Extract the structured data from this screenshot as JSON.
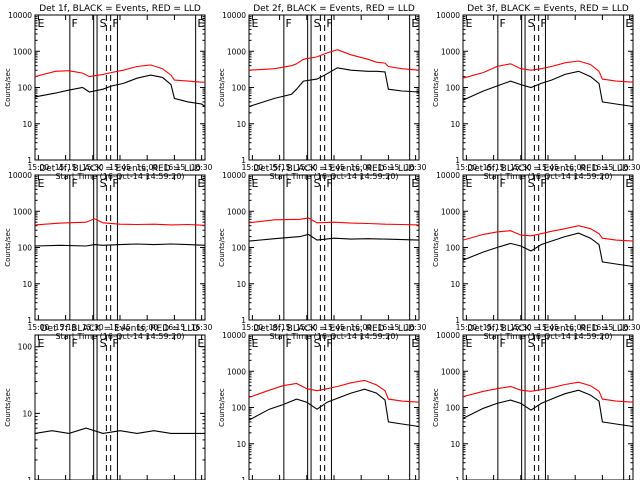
{
  "chart_data": [
    {
      "type": "line",
      "title": "Det 1f, BLACK = Events, RED = LLD",
      "xlabel": "Start Time (16-Oct-14 14:59:20)",
      "ylabel": "Counts/sec",
      "x_ticks": [
        "15:00",
        "15:15",
        "15:30",
        "15:45",
        "16:00",
        "16:15",
        "16:30"
      ],
      "y_ticks": [
        "1",
        "10",
        "100",
        "1000",
        "10000"
      ],
      "ylim": [
        1,
        10000
      ],
      "yscale": "log",
      "xrange_min": [
        0,
        100
      ],
      "series": [
        {
          "name": "Events",
          "color": "#000000",
          "x": [
            0,
            12,
            20,
            28,
            32,
            40,
            45,
            52,
            60,
            68,
            75,
            80,
            82,
            90,
            98,
            100
          ],
          "values": [
            55,
            70,
            85,
            100,
            75,
            90,
            110,
            130,
            180,
            220,
            190,
            120,
            50,
            40,
            35,
            30
          ]
        },
        {
          "name": "LLD",
          "color": "#ff0000",
          "x": [
            0,
            12,
            20,
            28,
            32,
            40,
            45,
            52,
            60,
            68,
            75,
            80,
            82,
            90,
            98,
            100
          ],
          "values": [
            200,
            280,
            290,
            250,
            200,
            230,
            260,
            300,
            380,
            420,
            330,
            220,
            160,
            150,
            140,
            140
          ]
        }
      ],
      "marker_labels": [
        "E",
        "F",
        "S",
        "F",
        "E"
      ]
    },
    {
      "type": "line",
      "title": "Det 2f, BLACK = Events, RED = LLD",
      "xlabel": "Start Time (16-Oct-14 14:59:20)",
      "ylabel": "Counts/sec",
      "x_ticks": [
        "15:00",
        "15:15",
        "15:30",
        "15:45",
        "16:00",
        "16:15",
        "16:30"
      ],
      "y_ticks": [
        "1",
        "10",
        "100",
        "1000",
        "10000"
      ],
      "ylim": [
        1,
        10000
      ],
      "yscale": "log",
      "xrange_min": [
        0,
        100
      ],
      "series": [
        {
          "name": "Events",
          "color": "#000000",
          "x": [
            0,
            15,
            25,
            28,
            32,
            40,
            46,
            52,
            60,
            70,
            75,
            80,
            82,
            90,
            100
          ],
          "values": [
            30,
            50,
            65,
            90,
            150,
            170,
            240,
            350,
            300,
            280,
            280,
            270,
            90,
            80,
            75
          ]
        },
        {
          "name": "LLD",
          "color": "#ff0000",
          "x": [
            0,
            15,
            25,
            28,
            32,
            40,
            46,
            52,
            60,
            70,
            75,
            80,
            82,
            90,
            100
          ],
          "values": [
            300,
            330,
            400,
            450,
            600,
            700,
            900,
            1100,
            800,
            600,
            500,
            470,
            380,
            330,
            300
          ]
        }
      ],
      "marker_labels": [
        "E",
        "F",
        "S",
        "F",
        "E"
      ]
    },
    {
      "type": "line",
      "title": "Det 3f, BLACK = Events, RED = LLD",
      "xlabel": "Start Time (16-Oct-14 14:59:20)",
      "ylabel": "Counts/sec",
      "x_ticks": [
        "15:00",
        "15:15",
        "15:30",
        "15:45",
        "16:00",
        "16:15",
        "16:30"
      ],
      "y_ticks": [
        "1",
        "10",
        "100",
        "1000",
        "10000"
      ],
      "ylim": [
        1,
        10000
      ],
      "yscale": "log",
      "xrange_min": [
        0,
        100
      ],
      "series": [
        {
          "name": "Events",
          "color": "#000000",
          "x": [
            0,
            12,
            20,
            28,
            34,
            40,
            46,
            52,
            60,
            68,
            75,
            80,
            82,
            90,
            100
          ],
          "values": [
            45,
            80,
            110,
            150,
            120,
            100,
            130,
            160,
            230,
            280,
            200,
            130,
            40,
            35,
            30
          ]
        },
        {
          "name": "LLD",
          "color": "#ff0000",
          "x": [
            0,
            12,
            20,
            28,
            34,
            40,
            46,
            52,
            60,
            68,
            75,
            80,
            82,
            90,
            100
          ],
          "values": [
            180,
            260,
            380,
            450,
            330,
            300,
            330,
            380,
            480,
            540,
            430,
            280,
            170,
            150,
            140
          ]
        }
      ],
      "marker_labels": [
        "E",
        "F",
        "S",
        "F",
        "E"
      ]
    },
    {
      "type": "line",
      "title": "Det 4f, BLACK = Events, RED = LLD",
      "xlabel": "Start Time (16-Oct-14 14:59:20)",
      "ylabel": "Counts/sec",
      "x_ticks": [
        "15:00",
        "15:15",
        "15:30",
        "15:45",
        "16:00",
        "16:15",
        "16:30"
      ],
      "y_ticks": [
        "1",
        "10",
        "100",
        "1000",
        "10000"
      ],
      "ylim": [
        1,
        10000
      ],
      "yscale": "log",
      "xrange_min": [
        0,
        100
      ],
      "series": [
        {
          "name": "Events",
          "color": "#000000",
          "x": [
            0,
            15,
            30,
            35,
            40,
            50,
            60,
            70,
            80,
            90,
            100
          ],
          "values": [
            110,
            115,
            110,
            120,
            115,
            120,
            125,
            120,
            125,
            120,
            115
          ]
        },
        {
          "name": "LLD",
          "color": "#ff0000",
          "x": [
            0,
            15,
            30,
            35,
            40,
            50,
            60,
            70,
            80,
            90,
            100
          ],
          "values": [
            420,
            470,
            500,
            620,
            480,
            440,
            430,
            440,
            420,
            430,
            410
          ]
        }
      ],
      "marker_labels": [
        "E",
        "F",
        "S",
        "F",
        "E"
      ]
    },
    {
      "type": "line",
      "title": "Det 5f, BLACK = Events, RED = LLD",
      "xlabel": "Start Time (16-Oct-14 14:59:20)",
      "ylabel": "Counts/sec",
      "x_ticks": [
        "15:00",
        "15:15",
        "15:30",
        "15:45",
        "16:00",
        "16:15",
        "16:30"
      ],
      "y_ticks": [
        "1",
        "10",
        "100",
        "1000",
        "10000"
      ],
      "ylim": [
        1,
        10000
      ],
      "yscale": "log",
      "xrange_min": [
        0,
        100
      ],
      "series": [
        {
          "name": "Events",
          "color": "#000000",
          "x": [
            0,
            15,
            30,
            35,
            40,
            50,
            60,
            70,
            80,
            90,
            100
          ],
          "values": [
            150,
            175,
            200,
            230,
            160,
            180,
            170,
            175,
            170,
            165,
            160
          ]
        },
        {
          "name": "LLD",
          "color": "#ff0000",
          "x": [
            0,
            15,
            30,
            35,
            40,
            50,
            60,
            70,
            80,
            90,
            100
          ],
          "values": [
            480,
            580,
            600,
            650,
            480,
            500,
            470,
            460,
            440,
            430,
            420
          ]
        }
      ],
      "marker_labels": [
        "E",
        "F",
        "S",
        "F",
        "E"
      ]
    },
    {
      "type": "line",
      "title": "Det 6f, BLACK = Events, RED = LLD",
      "xlabel": "Start Time (16-Oct-14 14:59:20)",
      "ylabel": "Counts/sec",
      "x_ticks": [
        "15:00",
        "15:15",
        "15:30",
        "15:45",
        "16:00",
        "16:15",
        "16:30"
      ],
      "y_ticks": [
        "1",
        "10",
        "100",
        "1000",
        "10000"
      ],
      "ylim": [
        1,
        10000
      ],
      "yscale": "log",
      "xrange_min": [
        0,
        100
      ],
      "series": [
        {
          "name": "Events",
          "color": "#000000",
          "x": [
            0,
            12,
            20,
            28,
            34,
            40,
            46,
            52,
            60,
            68,
            75,
            80,
            82,
            90,
            100
          ],
          "values": [
            45,
            75,
            100,
            130,
            110,
            80,
            120,
            150,
            200,
            250,
            180,
            120,
            40,
            35,
            30
          ]
        },
        {
          "name": "LLD",
          "color": "#ff0000",
          "x": [
            0,
            12,
            20,
            28,
            34,
            40,
            46,
            52,
            60,
            68,
            75,
            80,
            82,
            90,
            100
          ],
          "values": [
            160,
            230,
            270,
            290,
            220,
            210,
            240,
            280,
            330,
            400,
            330,
            240,
            180,
            160,
            150
          ]
        }
      ],
      "marker_labels": [
        "E",
        "F",
        "S",
        "F",
        "E"
      ]
    },
    {
      "type": "line",
      "title": "Det 7f BLACK = Events, RED = LLD",
      "xlabel": "Start Time (16-Oct-14 14:59:20)",
      "ylabel": "Counts/sec",
      "x_ticks": [
        "15:00",
        "15:15",
        "15:30",
        "15:45",
        "16:00",
        "16:15",
        "16:30"
      ],
      "y_ticks": [
        "1",
        "10",
        "100"
      ],
      "ylim": [
        1,
        150
      ],
      "yscale": "log",
      "xrange_min": [
        0,
        100
      ],
      "series": [
        {
          "name": "Events",
          "color": "#000000",
          "x": [
            0,
            10,
            20,
            30,
            40,
            50,
            60,
            70,
            80,
            90,
            100
          ],
          "values": [
            5,
            5.5,
            5,
            6,
            5,
            5.5,
            5,
            5.5,
            5,
            5,
            5
          ]
        }
      ],
      "marker_labels": [
        "E",
        "F",
        "S",
        "F",
        "E"
      ]
    },
    {
      "type": "line",
      "title": "Det 8f, BLACK = Events, RED = LLD",
      "xlabel": "Start Time (16-Oct-14 14:59:20)",
      "ylabel": "Counts/sec",
      "x_ticks": [
        "15:00",
        "15:15",
        "15:30",
        "15:45",
        "16:00",
        "16:15",
        "16:30"
      ],
      "y_ticks": [
        "1",
        "10",
        "100",
        "1000",
        "10000"
      ],
      "ylim": [
        1,
        10000
      ],
      "yscale": "log",
      "xrange_min": [
        0,
        100
      ],
      "series": [
        {
          "name": "Events",
          "color": "#000000",
          "x": [
            0,
            12,
            20,
            28,
            34,
            40,
            46,
            52,
            60,
            68,
            75,
            80,
            82,
            90,
            100
          ],
          "values": [
            45,
            90,
            120,
            170,
            140,
            90,
            140,
            180,
            250,
            320,
            250,
            160,
            40,
            35,
            30
          ]
        },
        {
          "name": "LLD",
          "color": "#ff0000",
          "x": [
            0,
            12,
            20,
            28,
            34,
            40,
            46,
            52,
            60,
            68,
            75,
            80,
            82,
            90,
            100
          ],
          "values": [
            190,
            300,
            400,
            460,
            330,
            290,
            330,
            380,
            480,
            560,
            420,
            290,
            170,
            150,
            140
          ]
        }
      ],
      "marker_labels": [
        "E",
        "F",
        "S",
        "F",
        "E"
      ]
    },
    {
      "type": "line",
      "title": "Det 9f, BLACK = Events, RED = LLD",
      "xlabel": "Start Time (16-Oct-14 14:59:20)",
      "ylabel": "Counts/sec",
      "x_ticks": [
        "15:00",
        "15:15",
        "15:30",
        "15:45",
        "16:00",
        "16:15",
        "16:30"
      ],
      "y_ticks": [
        "1",
        "10",
        "100",
        "1000",
        "10000"
      ],
      "ylim": [
        1,
        10000
      ],
      "yscale": "log",
      "xrange_min": [
        0,
        100
      ],
      "series": [
        {
          "name": "Events",
          "color": "#000000",
          "x": [
            0,
            12,
            20,
            28,
            34,
            40,
            46,
            52,
            60,
            68,
            75,
            80,
            82,
            90,
            100
          ],
          "values": [
            50,
            95,
            130,
            160,
            130,
            85,
            130,
            170,
            240,
            300,
            220,
            150,
            40,
            35,
            30
          ]
        },
        {
          "name": "LLD",
          "color": "#ff0000",
          "x": [
            0,
            12,
            20,
            28,
            34,
            40,
            46,
            52,
            60,
            68,
            75,
            80,
            82,
            90,
            100
          ],
          "values": [
            200,
            280,
            330,
            380,
            300,
            280,
            310,
            350,
            430,
            500,
            400,
            280,
            170,
            150,
            140
          ]
        }
      ],
      "marker_labels": [
        "E",
        "F",
        "S",
        "F",
        "E"
      ]
    }
  ]
}
